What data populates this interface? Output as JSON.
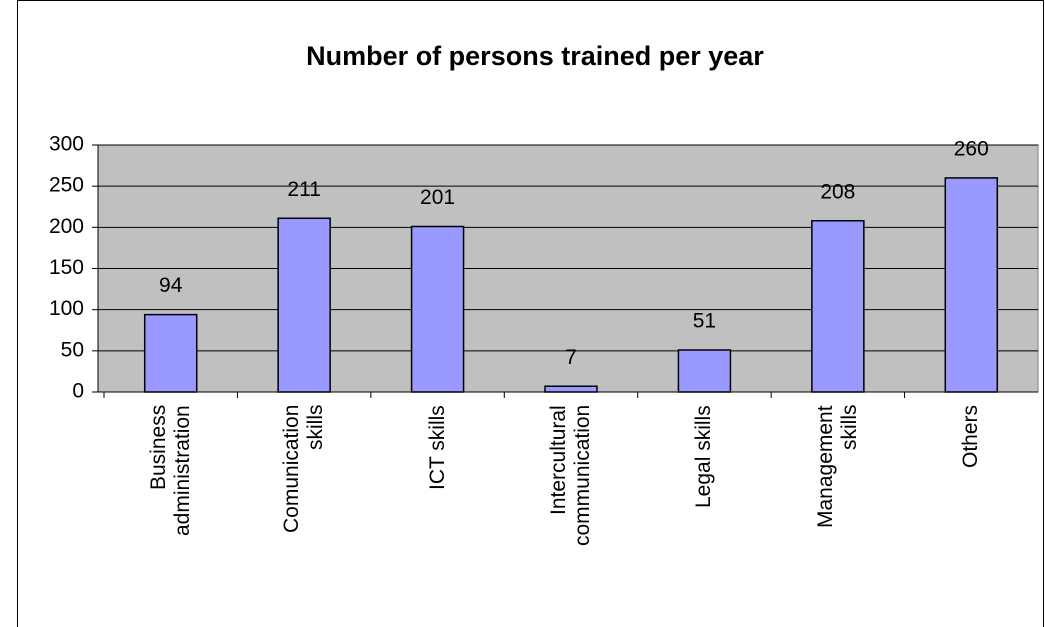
{
  "chart_data": {
    "type": "bar",
    "title": "Number of persons trained per year",
    "categories": [
      "Business administration",
      "Comunication skills",
      "ICT skills",
      "Intercultural communication",
      "Legal skills",
      "Management skills",
      "Others"
    ],
    "values": [
      94,
      211,
      201,
      7,
      51,
      208,
      260
    ],
    "color": "#9999ff",
    "ylim": [
      0,
      300
    ],
    "yticks": [
      0,
      50,
      100,
      150,
      200,
      250,
      300
    ],
    "grid": true
  }
}
